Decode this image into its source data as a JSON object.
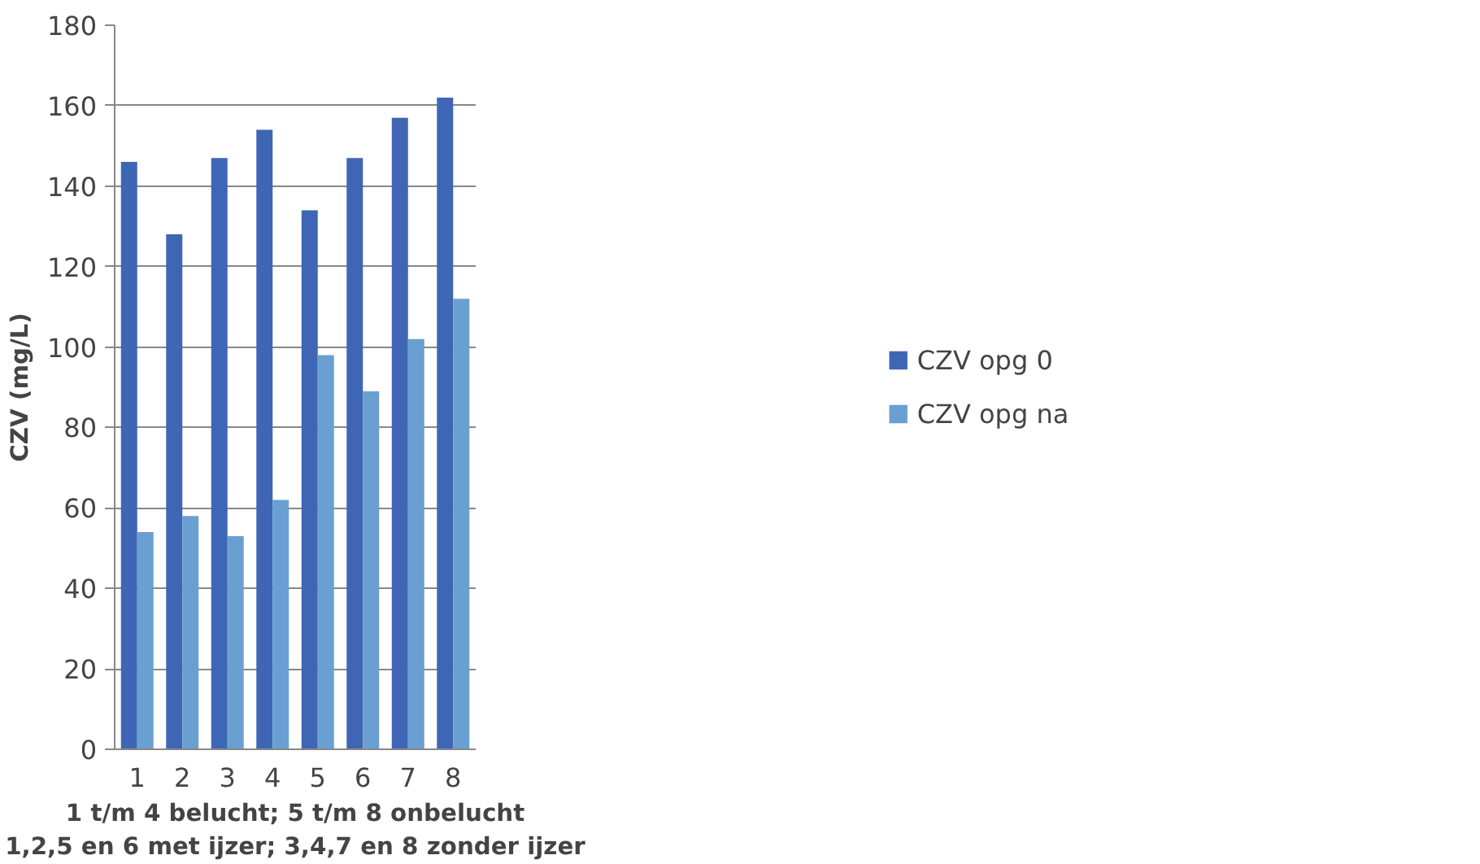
{
  "chart_data": {
    "type": "bar",
    "categories": [
      "1",
      "2",
      "3",
      "4",
      "5",
      "6",
      "7",
      "8"
    ],
    "series": [
      {
        "name": "CZV opg 0",
        "color": "#3e66b4",
        "values": [
          146,
          128,
          147,
          154,
          134,
          147,
          157,
          162
        ]
      },
      {
        "name": "CZV opg na",
        "color": "#6a9fd1",
        "values": [
          54,
          58,
          53,
          62,
          98,
          89,
          102,
          112
        ]
      }
    ],
    "ylabel": "CZV (mg/L)",
    "xlabel": "1 t/m 4 belucht; 5 t/m 8 onbelucht\n1,2,5 en 6 met ijzer; 3,4,7 en 8 zonder ijzer",
    "ylim": [
      0,
      180
    ],
    "yticks": [
      0,
      20,
      40,
      60,
      80,
      100,
      120,
      140,
      160,
      180
    ],
    "grid": "y",
    "legend": "right"
  }
}
